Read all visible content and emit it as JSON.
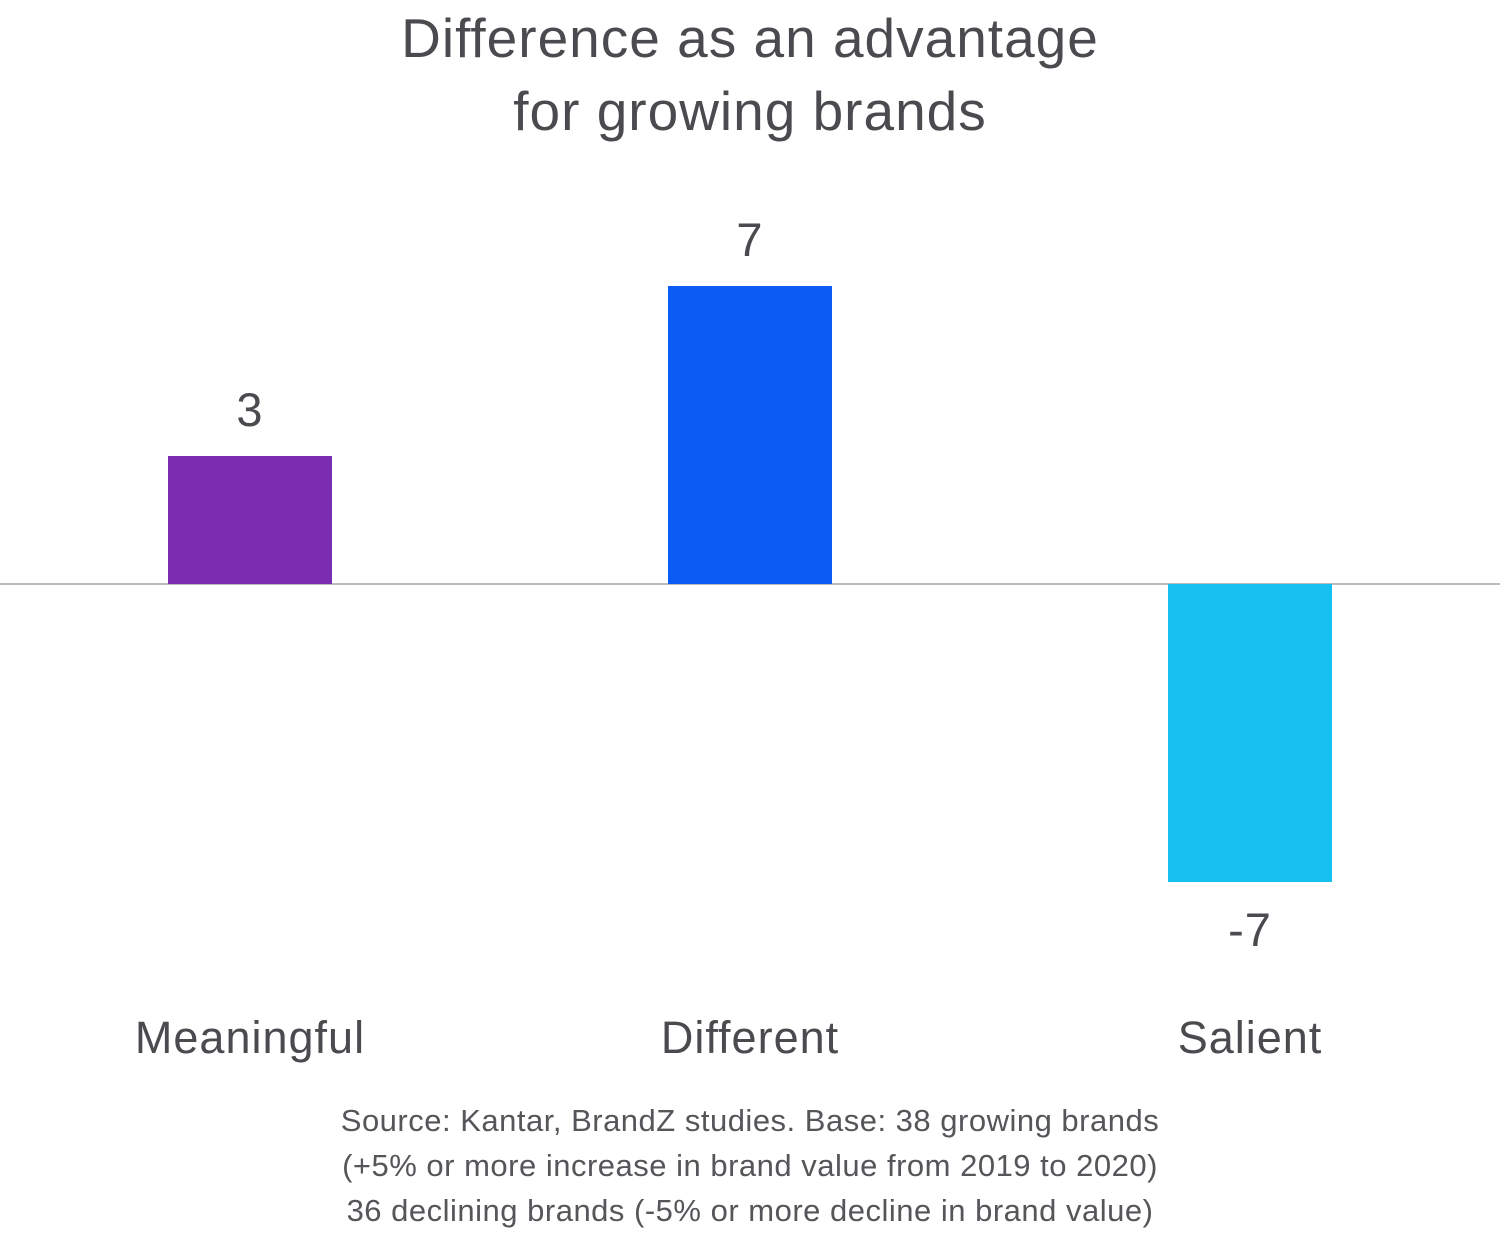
{
  "chart_data": {
    "type": "bar",
    "title": "Difference as an advantage for growing brands",
    "title_lines": [
      "Difference as an advantage",
      "for growing brands"
    ],
    "categories": [
      "Meaningful",
      "Different",
      "Salient"
    ],
    "values": [
      3,
      7,
      -7
    ],
    "value_labels": [
      "3",
      "7",
      "-7"
    ],
    "bar_colors": [
      "#7b2db2",
      "#0b5bf5",
      "#16c1f2"
    ],
    "baseline": 0,
    "ylim": [
      -8,
      8
    ],
    "xlabel": "",
    "ylabel": "",
    "grid": false,
    "legend": false
  },
  "source": {
    "lines": [
      "Source: Kantar, BrandZ studies. Base: 38 growing brands",
      "(+5% or more increase in brand value from 2019 to 2020)",
      "36 declining brands (-5% or more decline in brand value)"
    ]
  },
  "colors": {
    "title_text": "#4a4a4f",
    "axis_line": "#bcbcbc",
    "source_text": "#55555a",
    "background": "#ffffff"
  }
}
